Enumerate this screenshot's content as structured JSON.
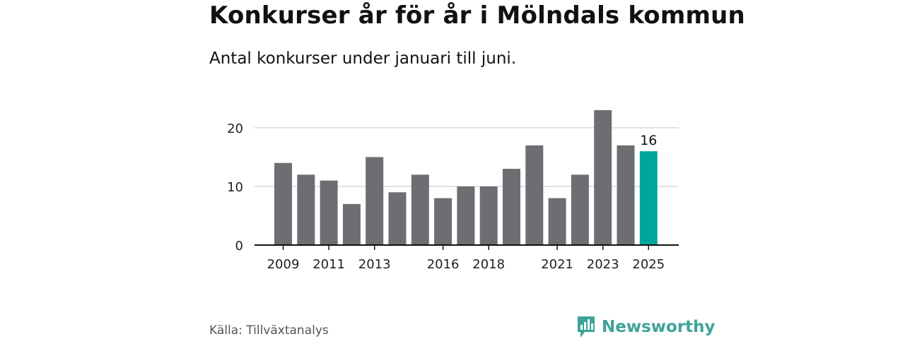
{
  "header": {
    "title": "Konkurser år för år i Mölndals kommun",
    "subtitle": "Antal konkurser under januari till juni."
  },
  "footer": {
    "source": "Källa: Tillväxtanalys",
    "brand": "Newsworthy",
    "brand_icon": "bar-chart-logo-icon"
  },
  "colors": {
    "bar": "#6e6d72",
    "highlight": "#00a69c",
    "grid": "#d9d9d9",
    "axis": "#111111",
    "brand": "#3fa39a"
  },
  "chart_data": {
    "type": "bar",
    "title": "Konkurser år för år i Mölndals kommun",
    "subtitle": "Antal konkurser under januari till juni.",
    "xlabel": "",
    "ylabel": "",
    "categories": [
      "2009",
      "2010",
      "2011",
      "2012",
      "2013",
      "2014",
      "2015",
      "2016",
      "2017",
      "2018",
      "2019",
      "2020",
      "2021",
      "2022",
      "2023",
      "2024",
      "2025"
    ],
    "values": [
      14,
      12,
      11,
      7,
      15,
      9,
      12,
      8,
      10,
      10,
      13,
      17,
      8,
      12,
      23,
      17,
      16
    ],
    "x_tick_labels": [
      "2009",
      "2011",
      "2013",
      "2016",
      "2018",
      "2021",
      "2023",
      "2025"
    ],
    "y_ticks": [
      0,
      10,
      20
    ],
    "ylim": [
      0,
      23
    ],
    "grid": true,
    "highlight_index": 16,
    "data_labels": [
      {
        "index": 16,
        "text": "16"
      }
    ]
  }
}
